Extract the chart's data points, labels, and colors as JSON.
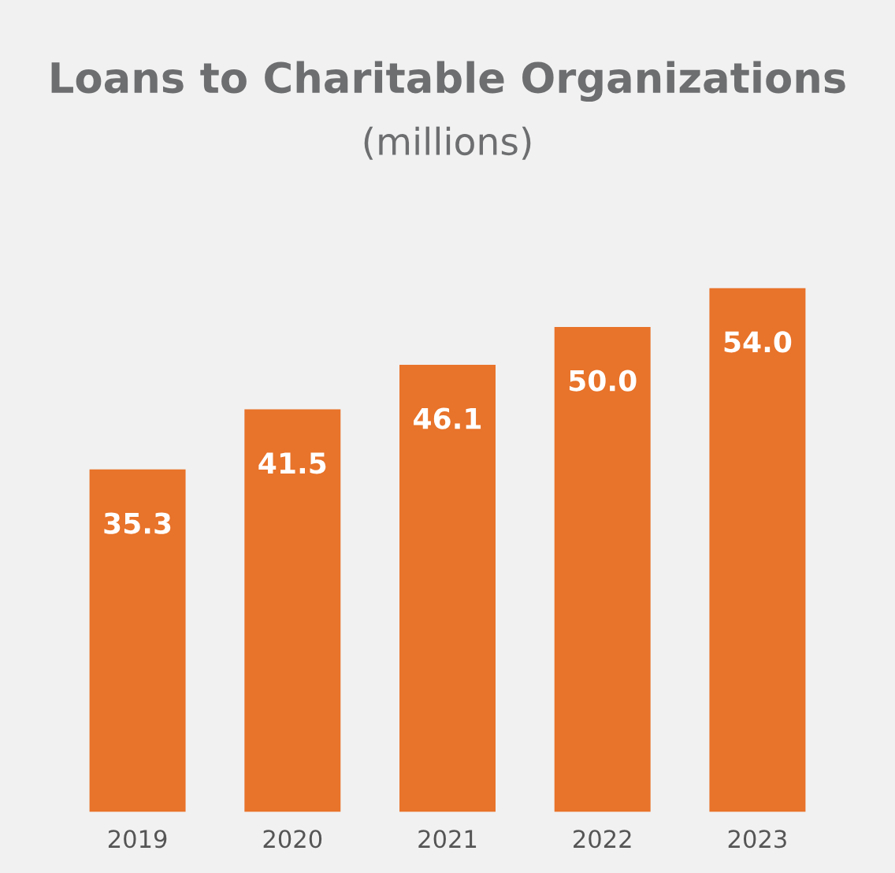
{
  "chart_data": {
    "type": "bar",
    "title": "Loans to Charitable Organizations",
    "subtitle": "(millions)",
    "categories": [
      "2019",
      "2020",
      "2021",
      "2022",
      "2023"
    ],
    "values": [
      35.3,
      41.5,
      46.1,
      50.0,
      54.0
    ],
    "value_labels": [
      "35.3",
      "41.5",
      "46.1",
      "50.0",
      "54.0"
    ],
    "color": "#e8732a",
    "grid": false,
    "legend": false
  }
}
